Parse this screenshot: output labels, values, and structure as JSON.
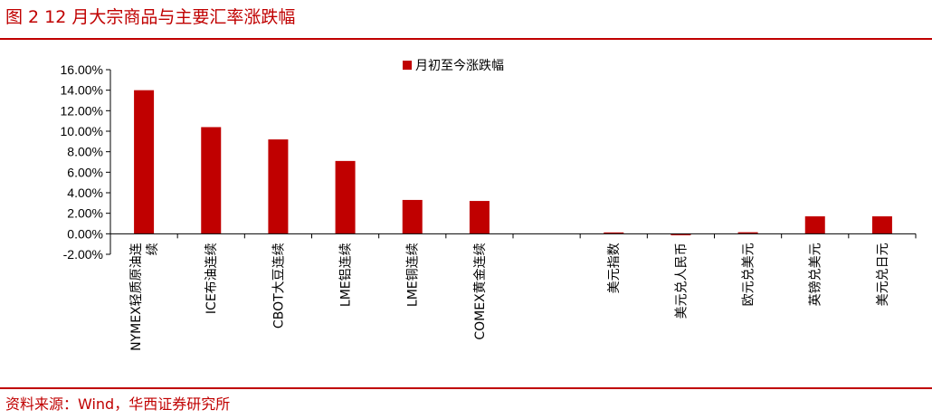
{
  "figure": {
    "title": "图 2 12 月大宗商品与主要汇率涨跌幅",
    "source": "资料来源：Wind，华西证券研究所",
    "accent_color": "#c00000"
  },
  "chart_data": {
    "type": "bar",
    "categories": [
      "NYMEX轻质原油连续",
      "ICE布油连续",
      "CBOT大豆连续",
      "LME铝连续",
      "LME铜连续",
      "COMEX黄金连续",
      "",
      "美元指数",
      "美元兑人民币",
      "欧元兑美元",
      "英镑兑美元",
      "美元兑日元"
    ],
    "category_lines": [
      [
        "NYMEX轻质原油连",
        "续"
      ],
      [
        "ICE布油连续"
      ],
      [
        "CBOT大豆连续"
      ],
      [
        "LME铝连续"
      ],
      [
        "LME铜连续"
      ],
      [
        "COMEX黄金连续"
      ],
      [],
      [
        "美元指数"
      ],
      [
        "美元兑人民币"
      ],
      [
        "欧元兑美元"
      ],
      [
        "英镑兑美元"
      ],
      [
        "美元兑日元"
      ]
    ],
    "series": [
      {
        "name": "月初至今涨跌幅",
        "color": "#c00000",
        "values": [
          14.0,
          10.4,
          9.2,
          7.1,
          3.3,
          3.2,
          null,
          0.0,
          -0.15,
          0.15,
          1.7,
          1.7
        ]
      }
    ],
    "ylim": [
      -2,
      16
    ],
    "yticks": [
      -2,
      0,
      2,
      4,
      6,
      8,
      10,
      12,
      14,
      16
    ],
    "ytick_format": "percent_2dp",
    "grid": false,
    "legend_position": "top-center"
  }
}
